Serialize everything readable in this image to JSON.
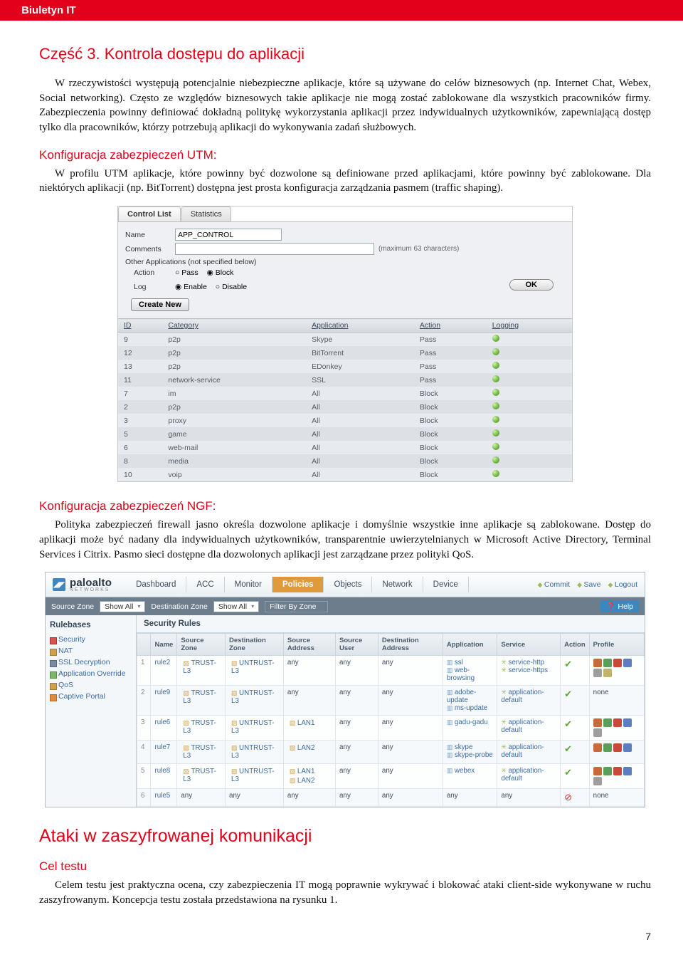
{
  "header_bar": "Biuletyn IT",
  "section_title": "Część 3. Kontrola dostępu do aplikacji",
  "para1": "W rzeczywistości występują potencjalnie niebezpieczne aplikacje, które są używane do celów biznesowych (np. Internet Chat, Webex, Social networking). Często ze względów biznesowych takie aplikacje nie mogą zostać zablokowane dla wszystkich pracowników firmy. Zabezpieczenia powinny definiować dokładną politykę wykorzystania aplikacji przez indywidualnych użytkowników, zapewniającą dostęp tylko dla pracowników, którzy potrzebują aplikacji do wykonywania zadań służbowych.",
  "utm_heading": "Konfiguracja zabezpieczeń UTM:",
  "utm_para": "W profilu UTM aplikacje, które powinny być dozwolone są definiowane przed aplikacjami, które powinny być zablokowane. Dla niektórych aplikacji (np. BitTorrent) dostępna jest prosta konfiguracja zarządzania pasmem (traffic shaping).",
  "utm": {
    "tabs": [
      "Control List",
      "Statistics"
    ],
    "labels": {
      "name": "Name",
      "comments": "Comments",
      "other": "Other Applications (not specified below)",
      "action": "Action",
      "log": "Log"
    },
    "name_value": "APP_CONTROL",
    "maxchars": "(maximum 63 characters)",
    "action_opts": [
      "Pass",
      "Block"
    ],
    "log_opts": [
      "Enable",
      "Disable"
    ],
    "ok": "OK",
    "create": "Create New",
    "cols": [
      "ID",
      "Category",
      "Application",
      "Action",
      "Logging"
    ],
    "rows": [
      [
        "9",
        "p2p",
        "Skype",
        "Pass"
      ],
      [
        "12",
        "p2p",
        "BitTorrent",
        "Pass"
      ],
      [
        "13",
        "p2p",
        "EDonkey",
        "Pass"
      ],
      [
        "11",
        "network-service",
        "SSL",
        "Pass"
      ],
      [
        "7",
        "im",
        "All",
        "Block"
      ],
      [
        "2",
        "p2p",
        "All",
        "Block"
      ],
      [
        "3",
        "proxy",
        "All",
        "Block"
      ],
      [
        "5",
        "game",
        "All",
        "Block"
      ],
      [
        "6",
        "web-mail",
        "All",
        "Block"
      ],
      [
        "8",
        "media",
        "All",
        "Block"
      ],
      [
        "10",
        "voip",
        "All",
        "Block"
      ]
    ]
  },
  "ngf_heading": "Konfiguracja zabezpieczeń NGF:",
  "ngf_para": "Polityka zabezpieczeń firewall jasno określa dozwolone aplikacje i domyślnie wszystkie inne aplikacje są zablokowane. Dostęp do aplikacji może być nadany dla indywidualnych użytkowników, transparentnie uwierzytelnianych w Microsoft Active Directory, Terminal Services i Citrix. Pasmo sieci dostępne dla dozwolonych aplikacji jest zarządzane przez polityki QoS.",
  "palo": {
    "brand": "paloalto",
    "brand_sub": "NETWORKS",
    "nav": [
      "Dashboard",
      "ACC",
      "Monitor",
      "Policies",
      "Objects",
      "Network",
      "Device"
    ],
    "nav_active": 3,
    "actions": [
      "Commit",
      "Save",
      "Logout"
    ],
    "filter": {
      "sz": "Source Zone",
      "dz": "Destination Zone",
      "show": "Show All",
      "fbz": "Filter By Zone",
      "help": "Help"
    },
    "side_title": "Rulebases",
    "side_items": [
      "Security",
      "NAT",
      "SSL Decryption",
      "Application Override",
      "QoS",
      "Captive Portal"
    ],
    "rules_title": "Security Rules",
    "cols": [
      "",
      "Name",
      "Source Zone",
      "Destination Zone",
      "Source Address",
      "Source User",
      "Destination Address",
      "Application",
      "Service",
      "Action",
      "Profile"
    ],
    "profile_colors": [
      "#c66a3a",
      "#5a9e5a",
      "#c9483a",
      "#5a7ebf",
      "#9e9e9e",
      "#bfb56a"
    ],
    "rules": [
      {
        "n": "1",
        "name": "rule2",
        "sz": "TRUST-L3",
        "dz": "UNTRUST-L3",
        "sa": "any",
        "su": "any",
        "da": "any",
        "apps": [
          "ssl",
          "web-browsing"
        ],
        "svc": [
          "service-http",
          "service-https"
        ],
        "act": "allow",
        "prof": "icons"
      },
      {
        "n": "2",
        "name": "rule9",
        "sz": "TRUST-L3",
        "dz": "UNTRUST-L3",
        "sa": "any",
        "su": "any",
        "da": "any",
        "apps": [
          "adobe-update",
          "ms-update"
        ],
        "svc": [
          "application-default"
        ],
        "act": "allow",
        "prof": "none"
      },
      {
        "n": "3",
        "name": "rule6",
        "sz": "TRUST-L3",
        "dz": "UNTRUST-L3",
        "sa": "LAN1",
        "su": "any",
        "da": "any",
        "apps": [
          "gadu-gadu"
        ],
        "svc": [
          "application-default"
        ],
        "act": "allow",
        "prof": "icons5"
      },
      {
        "n": "4",
        "name": "rule7",
        "sz": "TRUST-L3",
        "dz": "UNTRUST-L3",
        "sa": "LAN2",
        "su": "any",
        "da": "any",
        "apps": [
          "skype",
          "skype-probe"
        ],
        "svc": [
          "application-default"
        ],
        "act": "allow",
        "prof": "icons4"
      },
      {
        "n": "5",
        "name": "rule8",
        "sz": "TRUST-L3",
        "dz": "UNTRUST-L3",
        "sa": "LAN1, LAN2",
        "su": "any",
        "da": "any",
        "apps": [
          "webex"
        ],
        "svc": [
          "application-default"
        ],
        "act": "allow",
        "prof": "icons5"
      },
      {
        "n": "6",
        "name": "rule5",
        "sz": "any",
        "dz": "any",
        "sa": "any",
        "su": "any",
        "da": "any",
        "apps": [
          "any"
        ],
        "svc": [
          "any"
        ],
        "act": "deny",
        "prof": "none"
      }
    ]
  },
  "attacks_heading": "Ataki w zaszyfrowanej komunikacji",
  "cel_heading": "Cel testu",
  "cel_para": "Celem testu jest praktyczna ocena, czy zabezpieczenia IT mogą poprawnie wykrywać i blokować ataki client-side wykonywane w ruchu zaszyfrowanym. Koncepcja testu została przedstawiona na rysunku 1.",
  "page_number": "7"
}
